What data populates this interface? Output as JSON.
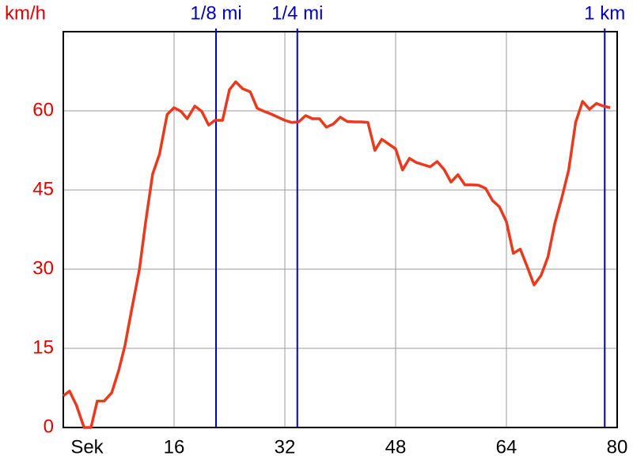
{
  "chart_data": {
    "type": "line",
    "y_label": "km/h",
    "x_label": "Sek",
    "color": "#e83a1e",
    "xlim": [
      0,
      80
    ],
    "ylim": [
      0,
      75
    ],
    "xticks": [
      16,
      32,
      48,
      64,
      80
    ],
    "yticks": [
      0,
      15,
      30,
      45,
      60
    ],
    "grid": true,
    "markers": [
      {
        "value": 22.06,
        "label": "1/8 mi"
      },
      {
        "value": 33.8,
        "label": "1/4 mi"
      },
      {
        "value": 78.2,
        "label": "1 km"
      }
    ],
    "marker_color": "#0000c0",
    "x": [
      0,
      0.9,
      1.9,
      3,
      4,
      4.9,
      5.9,
      7,
      8,
      8.9,
      9.9,
      11,
      11.9,
      12.9,
      13.9,
      15,
      16,
      17,
      17.9,
      19,
      20,
      21,
      21.9,
      23,
      24,
      24.9,
      25.9,
      27,
      28,
      29,
      30,
      31,
      32,
      33,
      34,
      35,
      36,
      37,
      38,
      39,
      40,
      41,
      42,
      43,
      44,
      45,
      46,
      47,
      48,
      49,
      50,
      51,
      52,
      53,
      54,
      55,
      56,
      57,
      58,
      59,
      60,
      61,
      62,
      63,
      64,
      65,
      66,
      67,
      68,
      69,
      70,
      71,
      72,
      73,
      74,
      75,
      76,
      77,
      78,
      79
    ],
    "values": [
      6,
      6.9,
      4.2,
      0,
      0,
      5,
      5,
      6.6,
      10.8,
      15.5,
      22.5,
      30,
      39,
      48,
      51.8,
      59.3,
      60.6,
      59.9,
      58.5,
      60.9,
      59.9,
      57.3,
      58.2,
      58.2,
      64,
      65.5,
      64.2,
      63.6,
      60.5,
      59.9,
      59.4,
      58.8,
      58.2,
      57.8,
      57.9,
      59.1,
      58.5,
      58.5,
      56.9,
      57.5,
      58.8,
      58,
      57.9,
      57.9,
      57.8,
      52.5,
      54.6,
      53.7,
      52.8,
      48.8,
      51,
      50.2,
      49.8,
      49.4,
      50.4,
      48.9,
      46.5,
      47.9,
      46,
      46,
      45.9,
      45.3,
      43,
      41.8,
      39,
      33,
      33.8,
      30.5,
      27,
      28.8,
      32.3,
      38.7,
      43.5,
      48.8,
      57.8,
      61.8,
      60.3,
      61.4,
      60.9,
      60.6
    ]
  }
}
